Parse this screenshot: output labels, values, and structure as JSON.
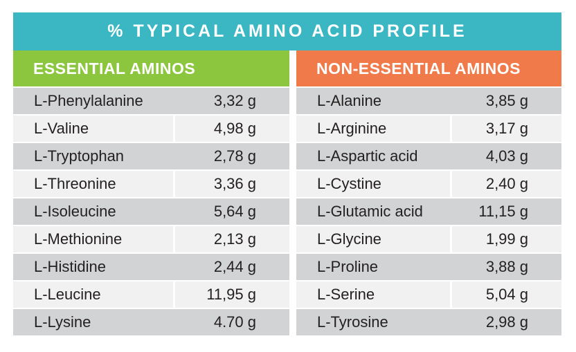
{
  "title": "% TYPICAL AMINO ACID PROFILE",
  "colors": {
    "teal": "#3AB7C3",
    "green": "#8CC63E",
    "orange": "#F07A4A",
    "row_dark": "#D1D3D4",
    "row_light": "#F1F1F2",
    "text": "#231F20",
    "header_text": "#FFFFFF"
  },
  "chart_data": {
    "type": "table",
    "title": "% TYPICAL AMINO ACID PROFILE",
    "unit": "g",
    "groups": [
      {
        "header": "ESSENTIAL AMINOS",
        "accent_color": "#8CC63E",
        "rows": [
          {
            "name": "L-Phenylalanine",
            "value": "3,32 g"
          },
          {
            "name": "L-Valine",
            "value": "4,98 g"
          },
          {
            "name": "L-Tryptophan",
            "value": "2,78 g"
          },
          {
            "name": "L-Threonine",
            "value": "3,36 g"
          },
          {
            "name": "L-Isoleucine",
            "value": "5,64 g"
          },
          {
            "name": "L-Methionine",
            "value": "2,13 g"
          },
          {
            "name": "L-Histidine",
            "value": "2,44 g"
          },
          {
            "name": "L-Leucine",
            "value": "11,95 g"
          },
          {
            "name": "L-Lysine",
            "value": "4.70 g"
          }
        ]
      },
      {
        "header": "NON-ESSENTIAL AMINOS",
        "accent_color": "#F07A4A",
        "rows": [
          {
            "name": "L-Alanine",
            "value": "3,85 g"
          },
          {
            "name": "L-Arginine",
            "value": "3,17 g"
          },
          {
            "name": "L-Aspartic acid",
            "value": "4,03 g"
          },
          {
            "name": "L-Cystine",
            "value": "2,40 g"
          },
          {
            "name": "L-Glutamic acid",
            "value": "11,15 g"
          },
          {
            "name": "L-Glycine",
            "value": "1,99 g"
          },
          {
            "name": "L-Proline",
            "value": "3,88 g"
          },
          {
            "name": "L-Serine",
            "value": "5,04 g"
          },
          {
            "name": "L-Tyrosine",
            "value": "2,98 g"
          }
        ]
      }
    ]
  }
}
